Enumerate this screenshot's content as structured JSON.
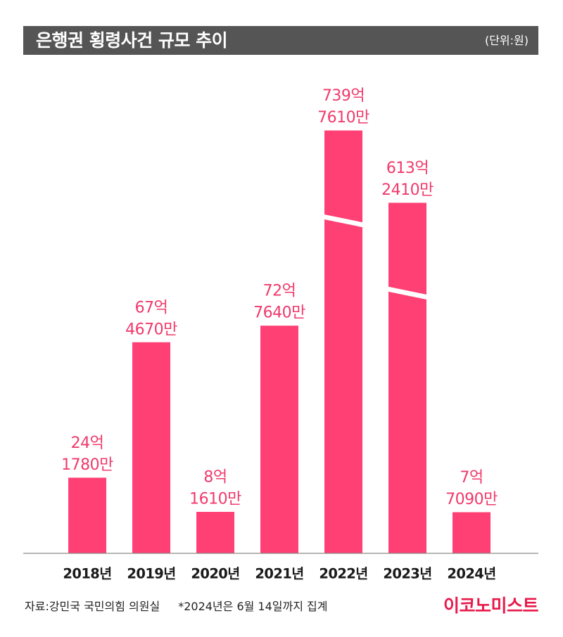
{
  "chart_data": {
    "type": "bar",
    "title": "은행권 횡령사건 규모 추이",
    "unit": "(단위:원)",
    "categories": [
      "2018년",
      "2019년",
      "2020년",
      "2021년",
      "2022년",
      "2023년",
      "2024년"
    ],
    "values": [
      2417800000,
      6746700000,
      816100000,
      7276400000,
      73976100000,
      61324100000,
      770900000
    ],
    "data_labels": [
      [
        "24억",
        "1780만"
      ],
      [
        "67억",
        "4670만"
      ],
      [
        "8억",
        "1610만"
      ],
      [
        "72억",
        "7640만"
      ],
      [
        "739억",
        "7610만"
      ],
      [
        "613억",
        "2410만"
      ],
      [
        "7억",
        "7090만"
      ]
    ],
    "bar_broken": [
      false,
      false,
      false,
      false,
      true,
      true,
      false
    ],
    "grid": false,
    "legend": "none"
  },
  "footer": {
    "source": "자료:강민국 국민의힘 의원실",
    "note": "*2024년은 6월 14일까지 집계",
    "logo": "이코노미스트"
  },
  "colors": {
    "bar": "#ff4075",
    "value_label": "#f03a6b",
    "title_bar": "#555555",
    "axis_line": "#8a8a8a",
    "category_label": "#1a1a1a",
    "logo": "#e8194a"
  }
}
